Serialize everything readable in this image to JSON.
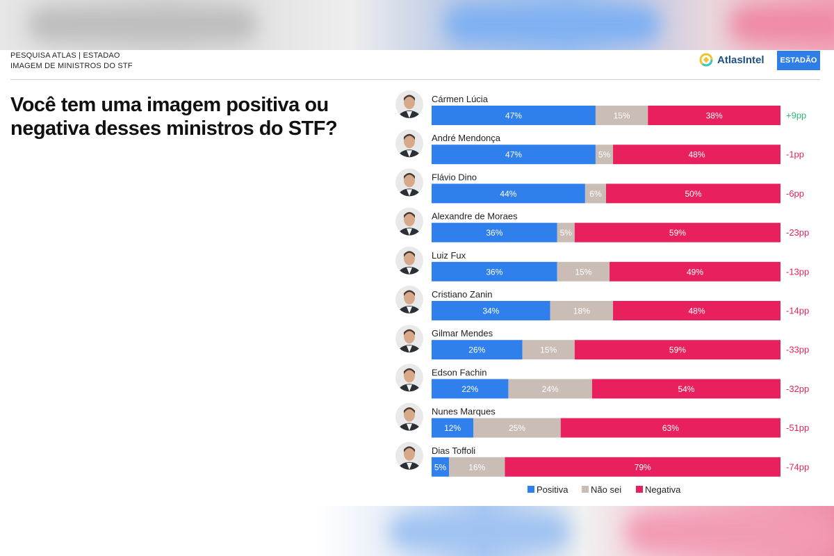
{
  "header": {
    "kicker_line1": "PESQUISA ATLAS | ESTADAO",
    "kicker_line2": "IMAGEM DE MINISTROS DO STF",
    "brand_atlas": "AtlasIntel",
    "brand_estadao": "ESTADÃO"
  },
  "question": "Você tem uma imagem positiva ou negativa desses ministros do STF?",
  "colors": {
    "positiva": "#2f80ed",
    "nao_sei": "#c9bdb6",
    "negativa": "#e8215e",
    "positive_diff": "#2bb673",
    "negative_diff": "#e0245e"
  },
  "chart_data": {
    "type": "bar",
    "orientation": "horizontal",
    "stacked": true,
    "categories": [
      "Cármen Lúcia",
      "André Mendonça",
      "Flávio Dino",
      "Alexandre de Moraes",
      "Luiz Fux",
      "Cristiano Zanin",
      "Gilmar Mendes",
      "Edson Fachin",
      "Nunes Marques",
      "Dias Toffoli"
    ],
    "series": [
      {
        "name": "Positiva",
        "values": [
          47,
          47,
          44,
          36,
          36,
          34,
          26,
          22,
          12,
          5
        ]
      },
      {
        "name": "Não sei",
        "values": [
          15,
          5,
          6,
          5,
          15,
          18,
          15,
          24,
          25,
          16
        ]
      },
      {
        "name": "Negativa",
        "values": [
          38,
          48,
          50,
          59,
          49,
          48,
          59,
          54,
          63,
          79
        ]
      }
    ],
    "value_labels": {
      "Positiva": [
        "47%",
        "47%",
        "44%",
        "36%",
        "36%",
        "34%",
        "26%",
        "22%",
        "12%",
        "5%"
      ],
      "Não sei": [
        "15%",
        "5%",
        "6%",
        "5%",
        "15%",
        "18%",
        "15%",
        "24%",
        "25%",
        "16%"
      ],
      "Negativa": [
        "38%",
        "48%",
        "50%",
        "59%",
        "49%",
        "48%",
        "59%",
        "54%",
        "63%",
        "79%"
      ]
    },
    "net_labels": [
      "+9pp",
      "-1pp",
      "-6pp",
      "-23pp",
      "-13pp",
      "-14pp",
      "-33pp",
      "-32pp",
      "-51pp",
      "-74pp"
    ],
    "xlim": [
      0,
      100
    ],
    "legend": [
      "Positiva",
      "Não sei",
      "Negativa"
    ],
    "legend_position": "bottom"
  }
}
